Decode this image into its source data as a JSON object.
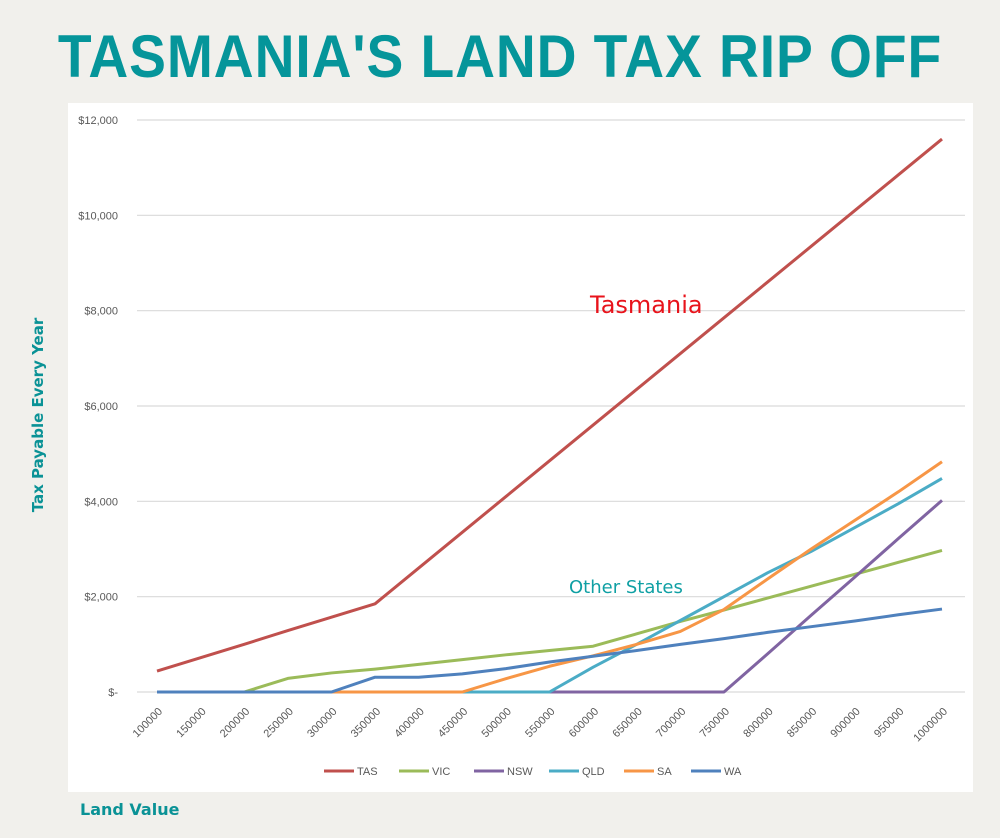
{
  "title": "TASMANIA'S LAND TAX RIP OFF",
  "chart_data": {
    "type": "line",
    "title": "TASMANIA'S LAND TAX RIP OFF",
    "xlabel": "Land Value",
    "ylabel": "Tax Payable Every Year",
    "x": [
      100000,
      150000,
      200000,
      250000,
      300000,
      350000,
      400000,
      450000,
      500000,
      550000,
      600000,
      650000,
      700000,
      750000,
      800000,
      850000,
      900000,
      950000,
      1000000
    ],
    "ylim": [
      0,
      12000
    ],
    "yticks": [
      0,
      2000,
      4000,
      6000,
      8000,
      10000,
      12000
    ],
    "ytick_labels": [
      "$-",
      "$2,000",
      "$4,000",
      "$6,000",
      "$8,000",
      "$10,000",
      "$12,000"
    ],
    "grid": true,
    "legend": "bottom",
    "series": [
      {
        "name": "TAS",
        "color": "#c0504d",
        "values": [
          440,
          720,
          1000,
          1290,
          1570,
          1850,
          2600,
          3350,
          4100,
          4850,
          5600,
          6350,
          7100,
          7850,
          8600,
          9350,
          10100,
          10850,
          11600
        ]
      },
      {
        "name": "VIC",
        "color": "#9bbb59",
        "values": [
          0,
          0,
          0,
          285,
          400,
          480,
          580,
          680,
          780,
          870,
          960,
          1220,
          1480,
          1720,
          1970,
          2220,
          2470,
          2720,
          2970
        ]
      },
      {
        "name": "NSW",
        "color": "#8064a2",
        "values": [
          0,
          0,
          0,
          0,
          0,
          0,
          0,
          0,
          0,
          0,
          0,
          0,
          0,
          0,
          800,
          1610,
          2410,
          3220,
          4020
        ]
      },
      {
        "name": "QLD",
        "color": "#4bacc6",
        "values": [
          0,
          0,
          0,
          0,
          0,
          0,
          0,
          0,
          0,
          0,
          520,
          1000,
          1500,
          2000,
          2500,
          2950,
          3450,
          3950,
          4480
        ]
      },
      {
        "name": "SA",
        "color": "#f79646",
        "values": [
          0,
          0,
          0,
          0,
          0,
          0,
          0,
          0,
          280,
          540,
          760,
          1000,
          1270,
          1730,
          2370,
          3000,
          3600,
          4200,
          4830
        ]
      },
      {
        "name": "WA",
        "color": "#4f81bd",
        "values": [
          0,
          0,
          0,
          0,
          0,
          310,
          310,
          380,
          490,
          630,
          750,
          870,
          1000,
          1120,
          1250,
          1370,
          1490,
          1620,
          1740
        ]
      }
    ],
    "annotations": [
      {
        "text": "Tasmania",
        "color": "#e8131b",
        "x": 750000,
        "y": 8000
      },
      {
        "text": "Other States",
        "color": "#10a0a4",
        "x": 650000,
        "y": 2100
      }
    ]
  }
}
